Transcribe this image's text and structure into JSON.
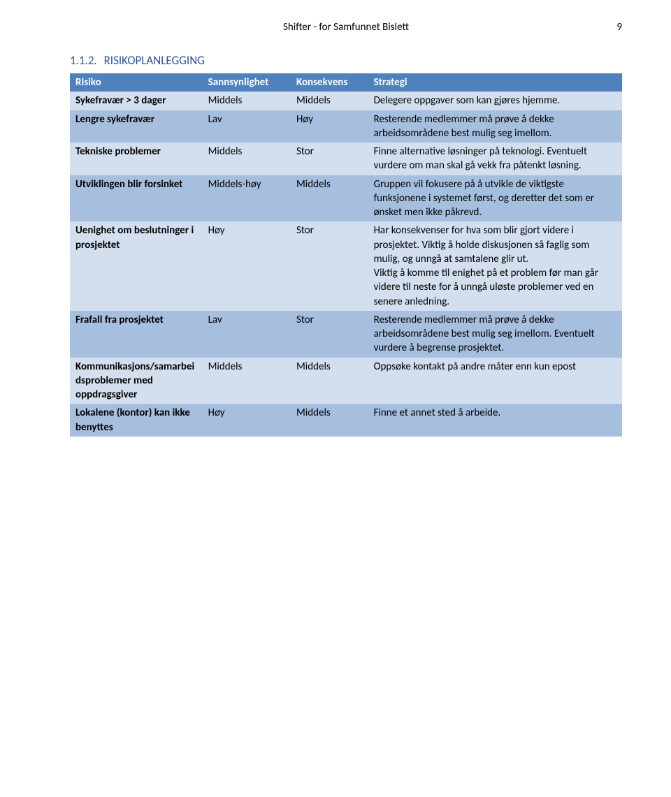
{
  "page_header": {
    "title": "Shifter - for Samfunnet Bislett",
    "page_number": "9"
  },
  "section": {
    "number": "1.1.2.",
    "title": "RISIKOPLANLEGGING"
  },
  "table": {
    "header_bg": "#4f81bd",
    "header_fg": "#ffffff",
    "row_light_bg": "#d3dfee",
    "row_dark_bg": "#a7bfde",
    "text_color": "#000000",
    "heading_color": "#2f5399",
    "font_size_pt": 11,
    "columns": [
      {
        "key": "risiko",
        "label": "Risiko",
        "width_pct": 24
      },
      {
        "key": "sannsynlighet",
        "label": "Sannsynlighet",
        "width_pct": 16
      },
      {
        "key": "konsekvens",
        "label": "Konsekvens",
        "width_pct": 14
      },
      {
        "key": "strategi",
        "label": "Strategi",
        "width_pct": 46
      }
    ],
    "rows": [
      {
        "risiko": "Sykefravær > 3 dager",
        "sannsynlighet": "Middels",
        "konsekvens": "Middels",
        "strategi": "Delegere oppgaver som kan gjøres hjemme."
      },
      {
        "risiko": "Lengre sykefravær",
        "sannsynlighet": "Lav",
        "konsekvens": "Høy",
        "strategi": "Resterende medlemmer må prøve å dekke arbeidsområdene best mulig seg imellom."
      },
      {
        "risiko": "Tekniske problemer",
        "sannsynlighet": "Middels",
        "konsekvens": "Stor",
        "strategi": "Finne alternative løsninger på teknologi. Eventuelt vurdere om man skal gå vekk fra påtenkt løsning."
      },
      {
        "risiko": "Utviklingen blir forsinket",
        "sannsynlighet": "Middels-høy",
        "konsekvens": "Middels",
        "strategi": "Gruppen vil fokusere på å utvikle de viktigste funksjonene i systemet først, og deretter det som er ønsket men ikke påkrevd."
      },
      {
        "risiko": "Uenighet om beslutninger i prosjektet",
        "sannsynlighet": "Høy",
        "konsekvens": "Stor",
        "strategi": "Har konsekvenser for hva som blir gjort videre i prosjektet. Viktig å holde diskusjonen så faglig som mulig, og unngå at samtalene glir ut.\nViktig å komme til enighet på et problem før man går videre til neste for å unngå uløste problemer ved en senere anledning."
      },
      {
        "risiko": "Frafall fra prosjektet",
        "sannsynlighet": "Lav",
        "konsekvens": "Stor",
        "strategi": "Resterende medlemmer må prøve å dekke arbeidsområdene best mulig seg imellom. Eventuelt vurdere å begrense prosjektet."
      },
      {
        "risiko": "Kommunikasjons/samarbeidsproblemer med oppdragsgiver",
        "sannsynlighet": "Middels",
        "konsekvens": "Middels",
        "strategi": "Oppsøke kontakt på andre måter enn kun epost"
      },
      {
        "risiko": "Lokalene (kontor) kan ikke benyttes",
        "sannsynlighet": "Høy",
        "konsekvens": "Middels",
        "strategi": "Finne et annet sted å arbeide."
      }
    ]
  }
}
